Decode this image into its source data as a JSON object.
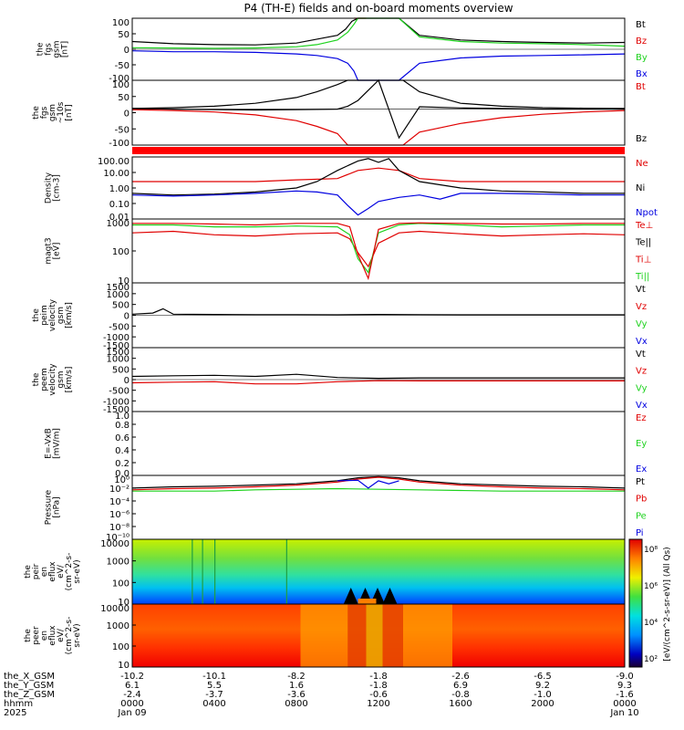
{
  "title": "P4 (TH-E) fields and on-board moments overview",
  "colors": {
    "black": "#000000",
    "red": "#e00000",
    "green": "#1ed21e",
    "blue": "#0000e0",
    "band": "#ff0000"
  },
  "chart_data": [
    {
      "type": "line",
      "panel": "fgs",
      "ylabel_lines": [
        "the",
        "fgs",
        "gsm",
        "[nT]"
      ],
      "yticks": [
        "100",
        "50",
        "0",
        "-50",
        "-100"
      ],
      "ylim": [
        -100,
        100
      ],
      "legend": [
        {
          "label": "Bt",
          "color": "#000000"
        },
        {
          "label": "Bz",
          "color": "#e00000"
        },
        {
          "label": "By",
          "color": "#1ed21e"
        },
        {
          "label": "Bx",
          "color": "#0000e0"
        }
      ],
      "series": [
        {
          "name": "Bt",
          "x": [
            0,
            2,
            4,
            6,
            8,
            10,
            10.4,
            10.7,
            11,
            13,
            14,
            16,
            18,
            20,
            22,
            24
          ],
          "y": [
            25,
            18,
            15,
            14,
            20,
            45,
            65,
            90,
            100,
            100,
            45,
            30,
            25,
            22,
            20,
            22
          ]
        },
        {
          "name": "Bz",
          "x": [
            10.8,
            11.0,
            11.1,
            11.2,
            11.3,
            11.4
          ],
          "y": [
            100,
            100,
            100,
            100,
            100,
            100
          ]
        },
        {
          "name": "By",
          "x": [
            0,
            2,
            4,
            6,
            8,
            9,
            10,
            10.5,
            10.8,
            11.0,
            13,
            14,
            16,
            18,
            20,
            22,
            24
          ],
          "y": [
            5,
            4,
            3,
            4,
            8,
            15,
            30,
            55,
            80,
            100,
            100,
            40,
            25,
            20,
            18,
            15,
            10
          ]
        },
        {
          "name": "Bx",
          "x": [
            0,
            2,
            4,
            6,
            8,
            9,
            10,
            10.5,
            10.8,
            11.0,
            13,
            14,
            16,
            18,
            20,
            22,
            24
          ],
          "y": [
            -5,
            -8,
            -8,
            -10,
            -15,
            -20,
            -30,
            -45,
            -70,
            -100,
            -100,
            -45,
            -28,
            -22,
            -20,
            -18,
            -15
          ]
        }
      ]
    },
    {
      "type": "line",
      "panel": "fgs_secondary",
      "ylabel_lines": [
        "the",
        "fgs",
        "gsm",
        "~10s",
        "[nT]"
      ],
      "yticks": [
        "100",
        "50",
        "0",
        "-50",
        "-100"
      ],
      "ylim": [
        -125,
        100
      ],
      "legend": [
        {
          "label": "Bt",
          "color": "#e00000"
        },
        {
          "label": "Bz",
          "color": "#000000"
        }
      ],
      "series": [
        {
          "name": "Bt",
          "x": [
            0,
            2,
            4,
            6,
            8,
            9,
            10,
            10.5,
            13.2,
            14,
            16,
            18,
            20,
            22,
            24
          ],
          "y": [
            -2,
            -5,
            -10,
            -20,
            -40,
            -60,
            -85,
            -125,
            -125,
            -80,
            -50,
            -30,
            -18,
            -10,
            -5
          ]
        },
        {
          "name": "Bz",
          "x": [
            0,
            2,
            4,
            6,
            8,
            10,
            10.5,
            11,
            12,
            13,
            14,
            16,
            18,
            20,
            22,
            24
          ],
          "y": [
            2,
            0,
            -2,
            -3,
            -2,
            0,
            10,
            30,
            100,
            -100,
            8,
            4,
            2,
            0,
            0,
            0
          ]
        },
        {
          "name": "By",
          "x": [
            0,
            2,
            4,
            6,
            8,
            9,
            10,
            10.5,
            13.2,
            14,
            16,
            18,
            20,
            22,
            24
          ],
          "y": [
            2,
            5,
            10,
            20,
            40,
            60,
            85,
            100,
            100,
            60,
            20,
            10,
            5,
            3,
            2
          ]
        }
      ]
    },
    {
      "type": "line",
      "panel": "density",
      "ylabel_lines": [
        "Density",
        "[cm-3]"
      ],
      "yticks": [
        "100.00",
        "10.00",
        "1.00",
        "0.10",
        "0.01"
      ],
      "ylim": [
        0.005,
        200
      ],
      "scale": "log",
      "legend": [
        {
          "label": "Ne",
          "color": "#e00000"
        },
        {
          "label": "Ni",
          "color": "#000000"
        },
        {
          "label": "Npot",
          "color": "#0000e0"
        }
      ],
      "series": [
        {
          "name": "Ne",
          "x": [
            0,
            2,
            4,
            6,
            8,
            10,
            11,
            12,
            13,
            14,
            16,
            18,
            20,
            22,
            24
          ],
          "y": [
            3,
            3,
            3,
            3,
            4,
            5,
            20,
            30,
            20,
            5,
            3,
            3,
            3,
            3,
            3
          ]
        },
        {
          "name": "Ni",
          "x": [
            0,
            2,
            4,
            6,
            8,
            9,
            10,
            11,
            11.5,
            12,
            12.5,
            13,
            14,
            16,
            18,
            20,
            22,
            24
          ],
          "y": [
            0.4,
            0.3,
            0.35,
            0.5,
            1,
            3,
            20,
            100,
            150,
            80,
            150,
            20,
            3,
            1,
            0.6,
            0.5,
            0.4,
            0.4
          ]
        },
        {
          "name": "Npot",
          "x": [
            0,
            2,
            4,
            6,
            8,
            9,
            10,
            10.5,
            11,
            11.5,
            12,
            13,
            14,
            15,
            16,
            18,
            20,
            22,
            24
          ],
          "y": [
            0.3,
            0.25,
            0.3,
            0.4,
            0.6,
            0.5,
            0.3,
            0.05,
            0.01,
            0.03,
            0.1,
            0.2,
            0.3,
            0.15,
            0.4,
            0.4,
            0.35,
            0.3,
            0.3
          ]
        }
      ]
    },
    {
      "type": "line",
      "panel": "temperature",
      "ylabel_lines": [
        "magt3",
        "[eV]"
      ],
      "yticks": [
        "1000",
        "100",
        "10"
      ],
      "ylim": [
        3,
        5000
      ],
      "scale": "log",
      "legend": [
        {
          "label": "Te⊥",
          "color": "#e00000"
        },
        {
          "label": "Te||",
          "color": "#000000"
        },
        {
          "label": "Ti⊥",
          "color": "#e00000"
        },
        {
          "label": "Ti||",
          "color": "#1ed21e"
        }
      ],
      "series": [
        {
          "name": "Te⊥",
          "x": [
            0,
            2,
            4,
            6,
            8,
            10,
            10.6,
            11,
            11.5,
            12,
            13,
            14,
            16,
            18,
            20,
            22,
            24
          ],
          "y": [
            1000,
            1200,
            800,
            700,
            900,
            1000,
            500,
            100,
            20,
            300,
            1000,
            1200,
            900,
            700,
            800,
            900,
            800
          ]
        },
        {
          "name": "Ti||",
          "x": [
            0,
            2,
            4,
            6,
            8,
            10,
            10.6,
            11,
            11.5,
            12,
            13,
            14,
            16,
            18,
            20,
            22,
            24
          ],
          "y": [
            2500,
            2500,
            2000,
            2000,
            2200,
            2000,
            800,
            50,
            10,
            1000,
            2500,
            3000,
            2500,
            2000,
            2200,
            2500,
            2500
          ]
        },
        {
          "name": "Ti⊥",
          "x": [
            0,
            2,
            4,
            6,
            8,
            10,
            10.6,
            11,
            11.5,
            12,
            13,
            14,
            16,
            18,
            20,
            22,
            24
          ],
          "y": [
            3000,
            3000,
            2800,
            2500,
            3000,
            3000,
            2000,
            80,
            5,
            1500,
            3000,
            3200,
            3000,
            2800,
            2800,
            3000,
            3000
          ]
        }
      ]
    },
    {
      "type": "line",
      "panel": "peim_velocity",
      "ylabel_lines": [
        "the",
        "peim",
        "velocity",
        "gsm",
        "[km/s]"
      ],
      "yticks": [
        "1500",
        "1000",
        "500",
        "0",
        "-500",
        "-1000",
        "-1500"
      ],
      "ylim": [
        -1500,
        1500
      ],
      "legend": [
        {
          "label": "Vt",
          "color": "#000000"
        },
        {
          "label": "Vz",
          "color": "#e00000"
        },
        {
          "label": "Vy",
          "color": "#1ed21e"
        },
        {
          "label": "Vx",
          "color": "#0000e0"
        }
      ],
      "series": [
        {
          "name": "Vt",
          "x": [
            0,
            1,
            1.5,
            2,
            4,
            6,
            8,
            10,
            12,
            14,
            16,
            18,
            20,
            22,
            24
          ],
          "y": [
            50,
            100,
            300,
            50,
            40,
            30,
            30,
            20,
            40,
            30,
            20,
            20,
            20,
            20,
            20
          ]
        }
      ]
    },
    {
      "type": "line",
      "panel": "peem_velocity",
      "ylabel_lines": [
        "the",
        "peem",
        "velocity",
        "gsm",
        "[km/s]"
      ],
      "yticks": [
        "1500",
        "1000",
        "500",
        "0",
        "-500",
        "-1000",
        "-1500"
      ],
      "ylim": [
        -1500,
        1500
      ],
      "legend": [
        {
          "label": "Vt",
          "color": "#000000"
        },
        {
          "label": "Vz",
          "color": "#e00000"
        },
        {
          "label": "Vy",
          "color": "#1ed21e"
        },
        {
          "label": "Vx",
          "color": "#0000e0"
        }
      ],
      "series": [
        {
          "name": "Vt",
          "x": [
            0,
            2,
            4,
            6,
            8,
            10,
            12,
            14,
            16,
            18,
            20,
            22,
            24
          ],
          "y": [
            150,
            180,
            200,
            150,
            250,
            100,
            60,
            80,
            80,
            80,
            80,
            80,
            80
          ]
        },
        {
          "name": "Vz",
          "x": [
            0,
            2,
            4,
            6,
            8,
            10,
            12,
            14,
            16,
            18,
            20,
            22,
            24
          ],
          "y": [
            -150,
            -120,
            -100,
            -200,
            -200,
            -100,
            -50,
            -60,
            -60,
            -60,
            -60,
            -60,
            -60
          ]
        }
      ]
    },
    {
      "type": "line",
      "panel": "efield",
      "ylabel_lines": [
        "E=-VxB",
        "[mV/m]"
      ],
      "yticks": [
        "1.0",
        "0.8",
        "0.6",
        "0.4",
        "0.2",
        "0.0"
      ],
      "ylim": [
        0,
        1
      ],
      "legend": [
        {
          "label": "Ez",
          "color": "#e00000"
        },
        {
          "label": "Ey",
          "color": "#1ed21e"
        },
        {
          "label": "Ex",
          "color": "#0000e0"
        }
      ],
      "series": []
    },
    {
      "type": "line",
      "panel": "pressure",
      "ylabel_lines": [
        "Pressure",
        "[nPa]"
      ],
      "yticks": [
        "10⁰",
        "10⁻²",
        "10⁻⁴",
        "10⁻⁶",
        "10⁻⁸",
        "10⁻¹⁰"
      ],
      "ylim": [
        -10,
        0.6
      ],
      "scale": "log",
      "legend": [
        {
          "label": "Pt",
          "color": "#000000"
        },
        {
          "label": "Pb",
          "color": "#e00000"
        },
        {
          "label": "Pe",
          "color": "#1ed21e"
        },
        {
          "label": "Pi",
          "color": "#0000e0"
        }
      ],
      "series": [
        {
          "name": "Pt",
          "x": [
            0,
            2,
            4,
            6,
            8,
            10,
            11,
            12,
            13,
            14,
            16,
            18,
            20,
            22,
            24
          ],
          "y": [
            -1.5,
            -1.3,
            -1.2,
            -1,
            -0.8,
            -0.3,
            0.2,
            0.4,
            0.2,
            -0.3,
            -0.8,
            -1,
            -1.2,
            -1.3,
            -1.5
          ]
        },
        {
          "name": "Pb",
          "x": [
            0,
            2,
            4,
            6,
            8,
            10,
            11,
            12,
            13,
            14,
            16,
            18,
            20,
            22,
            24
          ],
          "y": [
            -1.8,
            -1.6,
            -1.5,
            -1.3,
            -1,
            -0.5,
            0,
            0.3,
            0,
            -0.5,
            -1,
            -1.3,
            -1.5,
            -1.6,
            -1.8
          ]
        },
        {
          "name": "Pe",
          "x": [
            0,
            2,
            4,
            6,
            8,
            10,
            12,
            14,
            16,
            18,
            20,
            22,
            24
          ],
          "y": [
            -2,
            -2,
            -2,
            -1.8,
            -1.7,
            -1.6,
            -1.7,
            -1.8,
            -1.9,
            -2,
            -2,
            -2,
            -2
          ]
        },
        {
          "name": "Pi",
          "x": [
            10,
            11,
            11.5,
            12,
            12.5,
            13
          ],
          "y": [
            -0.3,
            -0.2,
            -1.5,
            -0.3,
            -0.8,
            -0.3
          ]
        }
      ]
    },
    {
      "type": "heatmap",
      "panel": "peir_spectrogram",
      "ylabel_lines": [
        "the",
        "peir",
        "en",
        "eflux",
        "eV/",
        "(cm^2-s-",
        "sr-eV)"
      ],
      "yticks": [
        "10000",
        "1000",
        "100",
        "10"
      ],
      "ylim": [
        5,
        25000
      ],
      "scale": "log"
    },
    {
      "type": "heatmap",
      "panel": "peer_spectrogram",
      "ylabel_lines": [
        "the",
        "peer",
        "en",
        "eflux",
        "eV/",
        "(cm^2-s-",
        "sr-eV)"
      ],
      "yticks": [
        "10000",
        "1000",
        "100",
        "10"
      ],
      "ylim": [
        5,
        25000
      ],
      "scale": "log"
    }
  ],
  "colorbar": {
    "label": "[eV/(cm^2-s-sr-eV)] (All Qs)",
    "ticks": [
      "10⁸",
      "10⁶",
      "10⁴",
      "10²"
    ]
  },
  "xaxis": {
    "row_labels": [
      "the_X_GSM",
      "the_Y_GSM",
      "the_Z_GSM",
      "hhmm",
      "2025"
    ],
    "columns": [
      {
        "vals": [
          "-10.2",
          "6.1",
          "-2.4",
          "0000",
          "Jan 09"
        ]
      },
      {
        "vals": [
          "-10.1",
          "5.5",
          "-3.7",
          "0400",
          ""
        ]
      },
      {
        "vals": [
          "-8.2",
          "1.6",
          "-3.6",
          "0800",
          ""
        ]
      },
      {
        "vals": [
          "-1.8",
          "-1.8",
          "-0.6",
          "1200",
          ""
        ]
      },
      {
        "vals": [
          "-2.6",
          "6.9",
          "-0.8",
          "1600",
          ""
        ]
      },
      {
        "vals": [
          "-6.5",
          "9.2",
          "-1.0",
          "2000",
          ""
        ]
      },
      {
        "vals": [
          "-9.0",
          "9.3",
          "-1.6",
          "0000",
          "Jan 10"
        ]
      }
    ]
  }
}
